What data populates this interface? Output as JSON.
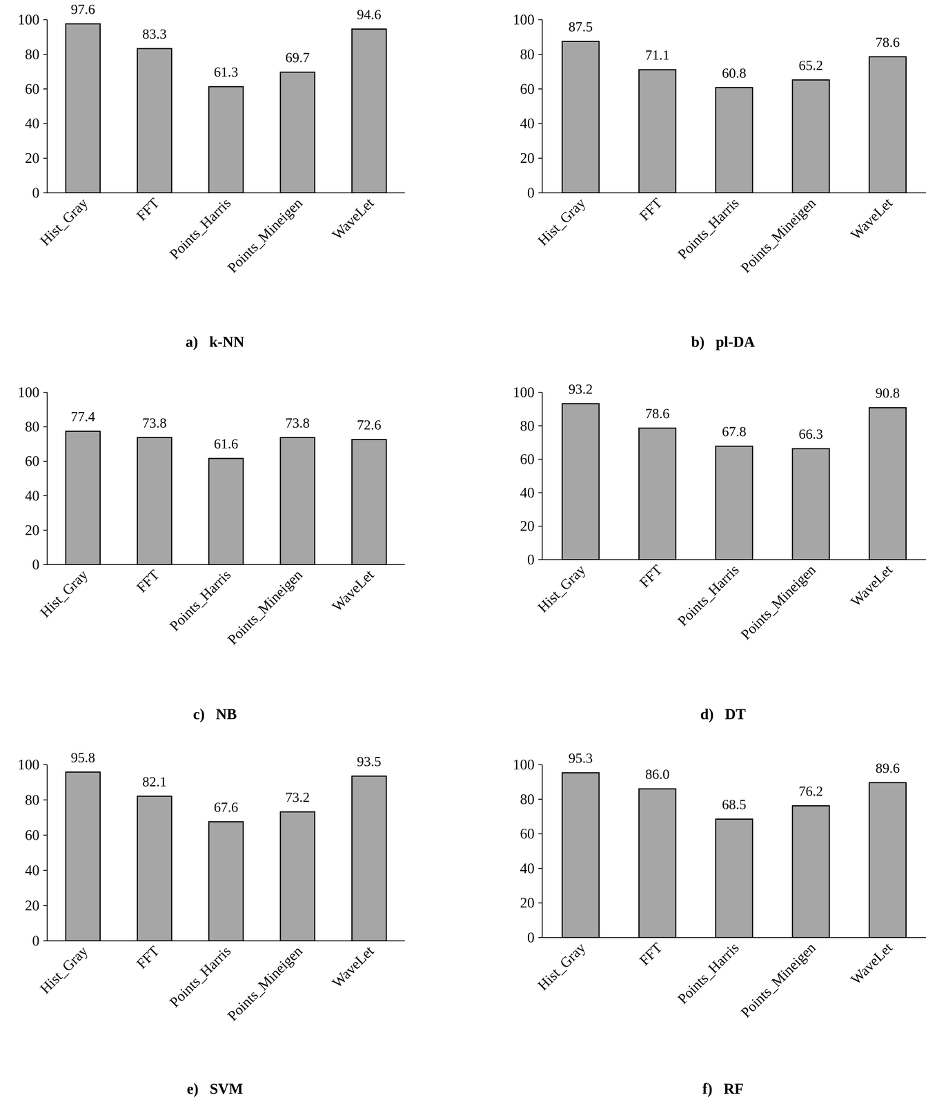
{
  "chart_data": [
    {
      "type": "bar",
      "title": "a)   k-NN",
      "categories": [
        "Hist_Gray",
        "FFT",
        "Points_Harris",
        "Points_Mineigen",
        "WaveLet"
      ],
      "values": [
        97.6,
        83.3,
        61.3,
        69.7,
        94.6
      ],
      "value_labels": [
        "97.6",
        "83.3",
        "61.3",
        "69.7",
        "94.6"
      ],
      "color": "#a6a6a6",
      "ylim": [
        0,
        100
      ],
      "yticks": [
        0,
        20,
        40,
        60,
        80,
        100
      ],
      "grid": false,
      "data_labels": true
    },
    {
      "type": "bar",
      "title": "b)   pl-DA",
      "categories": [
        "Hist_Gray",
        "FFT",
        "Points_Harris",
        "Points_Mineigen",
        "WaveLet"
      ],
      "values": [
        87.5,
        71.1,
        60.8,
        65.2,
        78.6
      ],
      "value_labels": [
        "87.5",
        "71.1",
        "60.8",
        "65.2",
        "78.6"
      ],
      "color": "#a6a6a6",
      "ylim": [
        0,
        100
      ],
      "yticks": [
        0,
        20,
        40,
        60,
        80,
        100
      ],
      "grid": false,
      "data_labels": true
    },
    {
      "type": "bar",
      "title": "c)   NB",
      "categories": [
        "Hist_Gray",
        "FFT",
        "Points_Harris",
        "Points_Mineigen",
        "WaveLet"
      ],
      "values": [
        77.4,
        73.8,
        61.6,
        73.8,
        72.6
      ],
      "value_labels": [
        "77.4",
        "73.8",
        "61.6",
        "73.8",
        "72.6"
      ],
      "color": "#a6a6a6",
      "ylim": [
        0,
        100
      ],
      "yticks": [
        0,
        20,
        40,
        60,
        80,
        100
      ],
      "grid": false,
      "data_labels": true
    },
    {
      "type": "bar",
      "title": "d)   DT",
      "categories": [
        "Hist_Gray",
        "FFT",
        "Points_Harris",
        "Points_Mineigen",
        "WaveLet"
      ],
      "values": [
        93.2,
        78.6,
        67.8,
        66.3,
        90.8
      ],
      "value_labels": [
        "93.2",
        "78.6",
        "67.8",
        "66.3",
        "90.8"
      ],
      "color": "#a6a6a6",
      "ylim": [
        0,
        100
      ],
      "yticks": [
        0,
        20,
        40,
        60,
        80,
        100
      ],
      "grid": false,
      "data_labels": true
    },
    {
      "type": "bar",
      "title": "e)   SVM",
      "categories": [
        "Hist_Gray",
        "FFT",
        "Points_Harris",
        "Points_Mineigen",
        "WaveLet"
      ],
      "values": [
        95.8,
        82.1,
        67.6,
        73.2,
        93.5
      ],
      "value_labels": [
        "95.8",
        "82.1",
        "67.6",
        "73.2",
        "93.5"
      ],
      "color": "#a6a6a6",
      "ylim": [
        0,
        100
      ],
      "yticks": [
        0,
        20,
        40,
        60,
        80,
        100
      ],
      "grid": false,
      "data_labels": true
    },
    {
      "type": "bar",
      "title": "f)   RF",
      "categories": [
        "Hist_Gray",
        "FFT",
        "Points_Harris",
        "Points_Mineigen",
        "WaveLet"
      ],
      "values": [
        95.3,
        86.0,
        68.5,
        76.2,
        89.6
      ],
      "value_labels": [
        "95.3",
        "86.0",
        "68.5",
        "76.2",
        "89.6"
      ],
      "color": "#a6a6a6",
      "ylim": [
        0,
        100
      ],
      "yticks": [
        0,
        20,
        40,
        60,
        80,
        100
      ],
      "grid": false,
      "data_labels": true
    }
  ]
}
